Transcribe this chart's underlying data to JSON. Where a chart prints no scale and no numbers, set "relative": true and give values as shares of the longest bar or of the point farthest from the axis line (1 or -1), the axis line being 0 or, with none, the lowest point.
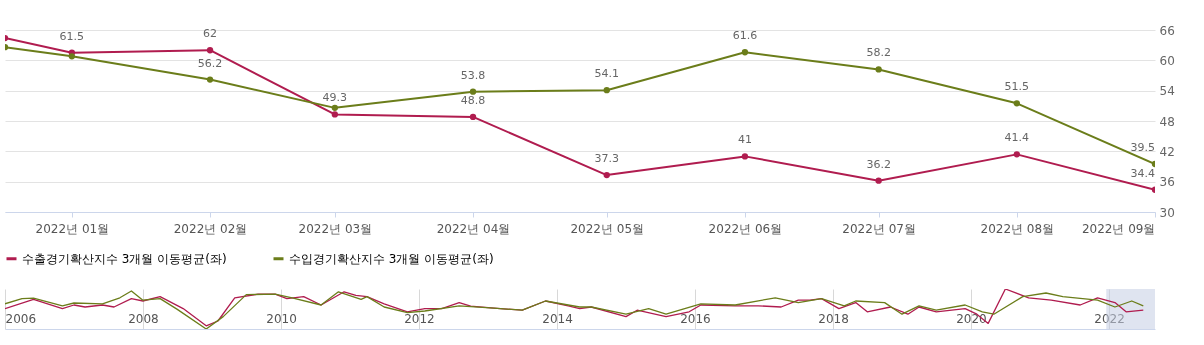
{
  "chart_data": [
    {
      "type": "line",
      "x": [
        "2021-12-17",
        "2022-01",
        "2022-02",
        "2022-03",
        "2022-04",
        "2022-05",
        "2022-06",
        "2022-07",
        "2022-08",
        "2022-09"
      ],
      "series": [
        {
          "name": "수출경기확산지수 3개월 이동평균(좌)",
          "color": "#b01c4f",
          "values": [
            64.4,
            61.5,
            62,
            49.3,
            48.8,
            37.3,
            41,
            36.2,
            41.4,
            34.4
          ],
          "value_labels": [
            null,
            "61.5",
            "62",
            "49.3",
            "48.8",
            "37.3",
            "41",
            "36.2",
            "41.4",
            "34.4"
          ]
        },
        {
          "name": "수입경기확산지수 3개월 이동평균(좌)",
          "color": "#6b7d1a",
          "values": [
            62.6,
            60.8,
            56.2,
            50.6,
            53.8,
            54.1,
            61.6,
            58.2,
            51.5,
            39.5
          ],
          "value_labels": [
            null,
            null,
            "56.2",
            null,
            "53.8",
            "54.1",
            "61.6",
            "58.2",
            "51.5",
            "39.5"
          ]
        }
      ],
      "xlim": [
        "2021-12-17",
        "2022-09"
      ],
      "xticks": [
        {
          "value": "2022-01",
          "label": "2022년 01월"
        },
        {
          "value": "2022-02",
          "label": "2022년 02월"
        },
        {
          "value": "2022-03",
          "label": "2022년 03월"
        },
        {
          "value": "2022-04",
          "label": "2022년 04월"
        },
        {
          "value": "2022-05",
          "label": "2022년 05월"
        },
        {
          "value": "2022-06",
          "label": "2022년 06월"
        },
        {
          "value": "2022-07",
          "label": "2022년 07월"
        },
        {
          "value": "2022-08",
          "label": "2022년 08월"
        },
        {
          "value": "2022-09",
          "label": "2022년 09월"
        }
      ],
      "ylim": [
        30,
        66
      ],
      "yticks": [
        30,
        36,
        42,
        48,
        54,
        60,
        66
      ],
      "grid": "y",
      "legend": "bottom",
      "marker": "circle",
      "line_style": "solid"
    },
    {
      "type": "line",
      "relative": true,
      "tick_labels": "x",
      "xlim": [
        "2006-01",
        "2022-09"
      ],
      "xticks": [
        {
          "value": "2006",
          "label": "2006"
        },
        {
          "value": "2008",
          "label": "2008"
        },
        {
          "value": "2010",
          "label": "2010"
        },
        {
          "value": "2012",
          "label": "2012"
        },
        {
          "value": "2014",
          "label": "2014"
        },
        {
          "value": "2016",
          "label": "2016"
        },
        {
          "value": "2018",
          "label": "2018"
        },
        {
          "value": "2020",
          "label": "2020"
        },
        {
          "value": "2022",
          "label": "2022"
        }
      ],
      "grid": "x",
      "bands": [
        {
          "axis": "x",
          "from": "2021-12-17",
          "to": "2022-09",
          "color": "#c5cde3"
        }
      ],
      "series": [
        {
          "color": "#b01c4f",
          "x": [
            "2006-01",
            "2006-06",
            "2006-11",
            "2007-01",
            "2007-03",
            "2007-06",
            "2007-08",
            "2007-11",
            "2008-01",
            "2008-04",
            "2008-08",
            "2008-12",
            "2009-02",
            "2009-05",
            "2009-09",
            "2009-12",
            "2010-02",
            "2010-05",
            "2010-08",
            "2010-12",
            "2011-02",
            "2011-04",
            "2011-07",
            "2011-11",
            "2012-02",
            "2012-05",
            "2012-08",
            "2012-10",
            "2013-02",
            "2013-07",
            "2013-11",
            "2014-03",
            "2014-05",
            "2014-07",
            "2015-01",
            "2015-03",
            "2015-08",
            "2015-12",
            "2016-02",
            "2016-08",
            "2016-12",
            "2017-04",
            "2017-07",
            "2017-09",
            "2017-11",
            "2018-02",
            "2018-05",
            "2018-07",
            "2018-11",
            "2019-02",
            "2019-04",
            "2019-07",
            "2019-12",
            "2020-02",
            "2020-04",
            "2020-07",
            "2020-11",
            "2021-03",
            "2021-08",
            "2021-11",
            "2022-02",
            "2022-04",
            "2022-07"
          ],
          "values": [
            0.51,
            0.74,
            0.51,
            0.6,
            0.55,
            0.6,
            0.55,
            0.76,
            0.7,
            0.81,
            0.51,
            0.08,
            0.2,
            0.78,
            0.87,
            0.87,
            0.76,
            0.81,
            0.6,
            0.93,
            0.84,
            0.81,
            0.63,
            0.43,
            0.51,
            0.51,
            0.66,
            0.57,
            0.52,
            0.47,
            0.7,
            0.58,
            0.51,
            0.55,
            0.31,
            0.47,
            0.31,
            0.43,
            0.6,
            0.58,
            0.58,
            0.55,
            0.72,
            0.72,
            0.76,
            0.51,
            0.66,
            0.43,
            0.55,
            0.37,
            0.55,
            0.43,
            0.51,
            0.37,
            0.14,
            1.0,
            0.78,
            0.72,
            0.6,
            0.78,
            0.66,
            0.43,
            0.47
          ]
        },
        {
          "color": "#6b7d1a",
          "x": [
            "2006-01",
            "2006-04",
            "2006-06",
            "2006-11",
            "2007-01",
            "2007-06",
            "2007-09",
            "2007-11",
            "2008-01",
            "2008-04",
            "2008-07",
            "2008-12",
            "2009-03",
            "2009-07",
            "2009-12",
            "2010-03",
            "2010-08",
            "2010-11",
            "2011-03",
            "2011-04",
            "2011-07",
            "2011-11",
            "2012-02",
            "2012-08",
            "2013-02",
            "2013-07",
            "2013-11",
            "2014-05",
            "2014-07",
            "2015-01",
            "2015-05",
            "2015-08",
            "2016-02",
            "2016-08",
            "2017-03",
            "2017-07",
            "2017-11",
            "2018-03",
            "2018-05",
            "2018-10",
            "2019-01",
            "2019-04",
            "2019-07",
            "2019-12",
            "2020-03",
            "2020-05",
            "2020-10",
            "2021-02",
            "2021-05",
            "2021-11",
            "2022-02",
            "2022-05",
            "2022-07"
          ],
          "values": [
            0.63,
            0.76,
            0.77,
            0.58,
            0.65,
            0.63,
            0.78,
            0.95,
            0.72,
            0.76,
            0.49,
            0.0,
            0.31,
            0.86,
            0.87,
            0.78,
            0.6,
            0.93,
            0.74,
            0.81,
            0.55,
            0.41,
            0.45,
            0.58,
            0.52,
            0.47,
            0.7,
            0.55,
            0.55,
            0.37,
            0.51,
            0.37,
            0.63,
            0.6,
            0.78,
            0.66,
            0.76,
            0.58,
            0.7,
            0.66,
            0.37,
            0.58,
            0.47,
            0.6,
            0.43,
            0.37,
            0.81,
            0.9,
            0.81,
            0.72,
            0.55,
            0.7,
            0.58
          ]
        }
      ]
    }
  ]
}
